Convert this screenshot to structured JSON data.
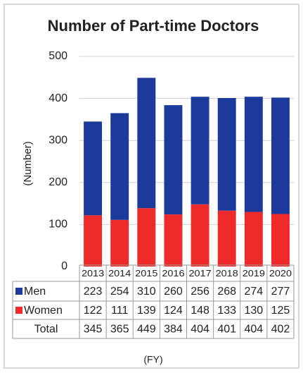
{
  "chart_data": {
    "type": "bar",
    "stacked": true,
    "title": "Number of Part-time Doctors",
    "y_label": "(Number)",
    "x_label": "(FY)",
    "categories": [
      "2013",
      "2014",
      "2015",
      "2016",
      "2017",
      "2018",
      "2019",
      "2020"
    ],
    "series": [
      {
        "name": "Men",
        "color": "#1c3a9c",
        "values": [
          223,
          254,
          310,
          260,
          256,
          268,
          274,
          277
        ]
      },
      {
        "name": "Women",
        "color": "#ee2a2a",
        "values": [
          122,
          111,
          139,
          124,
          148,
          133,
          130,
          125
        ]
      }
    ],
    "total_label": "Total",
    "totals": [
      345,
      365,
      449,
      384,
      404,
      401,
      404,
      402
    ],
    "ylim": [
      0,
      500
    ],
    "yticks": [
      0,
      100,
      200,
      300,
      400,
      500
    ],
    "grid": true
  }
}
